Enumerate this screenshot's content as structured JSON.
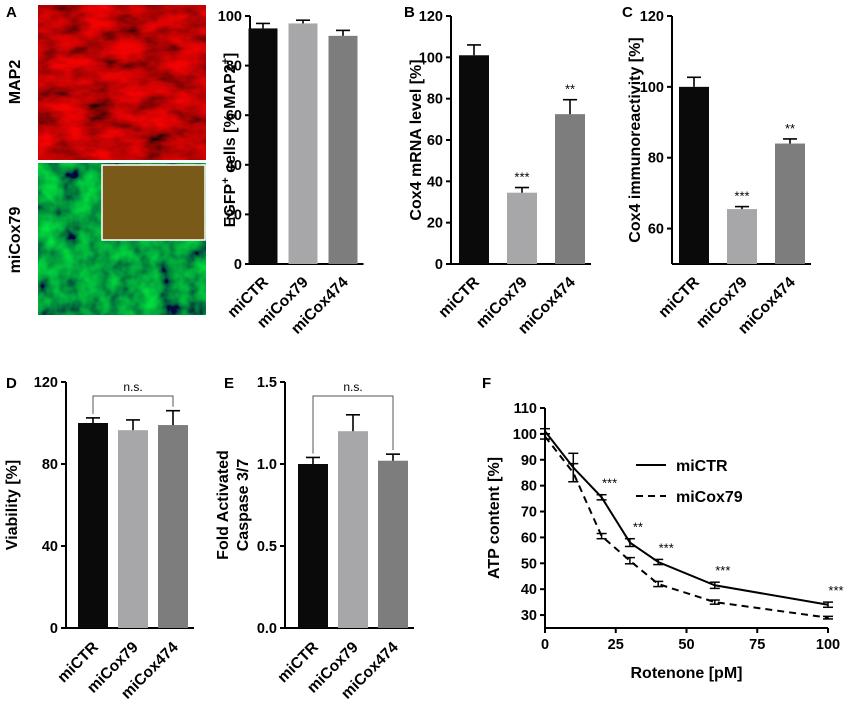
{
  "colors": {
    "miCTR": "#0a0a0a",
    "miCox79": "#a7a7aa",
    "miCox474": "#7d7d7d"
  },
  "micrograph": {
    "panel_label": "A",
    "top_label": "MAP2",
    "bottom_label": "miCox79",
    "top_color": "#b01010",
    "bottom_color": "#0f6a22",
    "inset_color": "#7a5a18"
  },
  "chart_data": [
    {
      "id": "A",
      "panel_label": "",
      "type": "bar",
      "categories": [
        "miCTR",
        "miCox79",
        "miCox474"
      ],
      "values": [
        95,
        97,
        92
      ],
      "errors": [
        2.0,
        1.3,
        2.2
      ],
      "ylabel": "EGFP+ cells [% MAP2+]",
      "ylabel_parts": [
        "EGFP",
        "+",
        " cells [% MAP2",
        "+",
        "]"
      ],
      "ylim": [
        0,
        100
      ],
      "yticks": [
        0,
        20,
        40,
        60,
        80,
        100
      ],
      "sig": [
        "",
        "",
        ""
      ]
    },
    {
      "id": "B",
      "panel_label": "B",
      "type": "bar",
      "categories": [
        "miCTR",
        "miCox79",
        "miCox474"
      ],
      "values": [
        101,
        34.5,
        72.5
      ],
      "errors": [
        5,
        2.5,
        7
      ],
      "ylabel": "Cox4 mRNA level [%]",
      "ylim": [
        0,
        120
      ],
      "yticks": [
        0,
        20,
        40,
        60,
        80,
        100,
        120
      ],
      "sig": [
        "",
        "***",
        "**"
      ]
    },
    {
      "id": "C",
      "panel_label": "C",
      "type": "bar",
      "categories": [
        "miCTR",
        "miCox79",
        "miCox474"
      ],
      "values": [
        100,
        65.5,
        84
      ],
      "errors": [
        2.7,
        0.7,
        1.3
      ],
      "ylabel": "Cox4 immunoreactivity [%]",
      "ylim": [
        50,
        120
      ],
      "yticks": [
        60,
        80,
        100,
        120
      ],
      "sig": [
        "",
        "***",
        "**"
      ]
    },
    {
      "id": "D",
      "panel_label": "D",
      "type": "bar",
      "categories": [
        "miCTR",
        "miCox79",
        "miCox474"
      ],
      "values": [
        100,
        96.5,
        99
      ],
      "errors": [
        2.5,
        5,
        7
      ],
      "ylabel": "Viability [%]",
      "ylim": [
        0,
        120
      ],
      "yticks": [
        0,
        40,
        80,
        120
      ],
      "sig": [
        "",
        "",
        ""
      ],
      "bracket": {
        "from": 0,
        "to": 2,
        "text": "n.s."
      }
    },
    {
      "id": "E",
      "panel_label": "E",
      "type": "bar",
      "categories": [
        "miCTR",
        "miCox79",
        "miCox474"
      ],
      "values": [
        1.0,
        1.2,
        1.02
      ],
      "errors": [
        0.04,
        0.1,
        0.04
      ],
      "ylabel": "Fold Activated Caspase 3/7",
      "ylabel_lines": [
        "Fold Activated",
        "Caspase 3/7"
      ],
      "ylim": [
        0,
        1.5
      ],
      "yticks": [
        "0.0",
        "0.5",
        "1.0",
        "1.5"
      ],
      "sig": [
        "",
        "",
        ""
      ],
      "bracket": {
        "from": 0,
        "to": 2,
        "text": "n.s."
      }
    },
    {
      "id": "F",
      "panel_label": "F",
      "type": "line",
      "x": [
        0,
        10,
        20,
        30,
        40,
        60,
        100
      ],
      "series": [
        {
          "name": "miCTR",
          "dash": false,
          "values": [
            101,
            87,
            75.5,
            58,
            50.5,
            41.5,
            34
          ],
          "errors": [
            1,
            5.5,
            1,
            1.5,
            1,
            1.2,
            1
          ]
        },
        {
          "name": "miCox79",
          "dash": true,
          "values": [
            99,
            85,
            60.5,
            51,
            42,
            35,
            29
          ],
          "errors": [
            1,
            3.5,
            1,
            1.2,
            1,
            0.8,
            0.5
          ]
        }
      ],
      "sig": [
        "",
        "",
        "***",
        "**",
        "***",
        "***",
        "***"
      ],
      "xlabel": "Rotenone [pM]",
      "ylabel": "ATP content [%]",
      "xlim": [
        0,
        100
      ],
      "ylim": [
        25,
        110
      ],
      "xticks": [
        0,
        25,
        50,
        75,
        100
      ],
      "yticks": [
        30,
        40,
        50,
        60,
        70,
        80,
        90,
        100,
        110
      ],
      "legend": "top-right"
    }
  ]
}
